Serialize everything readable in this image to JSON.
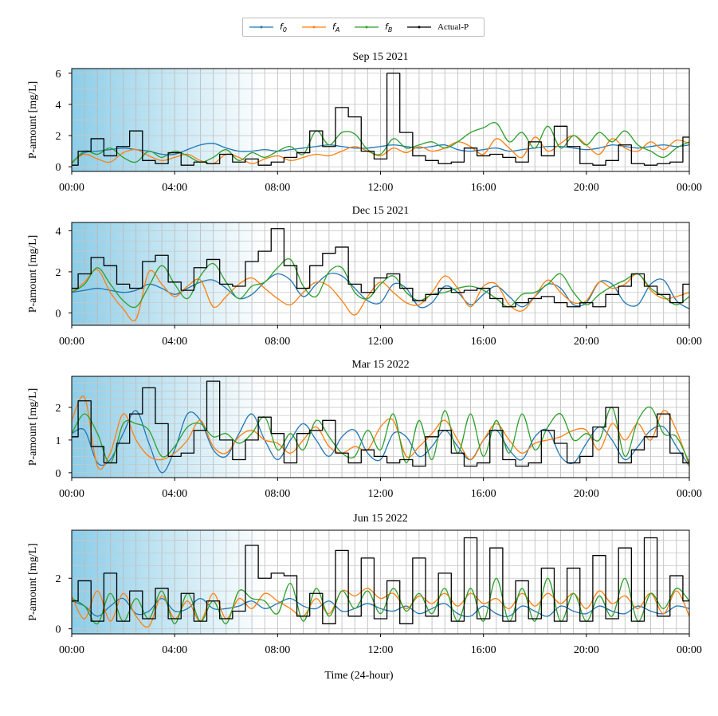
{
  "legend": {
    "items": [
      {
        "label": "f",
        "sub": "0",
        "color": "#1f77b4"
      },
      {
        "label": "f",
        "sub": "A",
        "color": "#ff7f0e"
      },
      {
        "label": "f",
        "sub": "B",
        "color": "#2ca02c"
      },
      {
        "label": "Actual-P",
        "sub": "",
        "color": "#000000"
      }
    ]
  },
  "xlabel": "Time (24-hour)",
  "chart_data": [
    {
      "type": "line",
      "title": "Sep 15 2021",
      "ylabel": "P-amount [mg/L]",
      "ylim": [
        -0.3,
        6.3
      ],
      "yticks": [
        0,
        2,
        4,
        6
      ],
      "xticks": [
        "00:00",
        "04:00",
        "08:00",
        "12:00",
        "16:00",
        "20:00",
        "00:00"
      ],
      "x_hours": [
        0,
        0.5,
        1,
        1.5,
        2,
        2.5,
        3,
        3.5,
        4,
        4.5,
        5,
        5.5,
        6,
        6.5,
        7,
        7.5,
        8,
        8.5,
        9,
        9.5,
        10,
        10.5,
        11,
        11.5,
        12,
        12.5,
        13,
        13.5,
        14,
        14.5,
        15,
        15.5,
        16,
        16.5,
        17,
        17.5,
        18,
        18.5,
        19,
        19.5,
        20,
        20.5,
        21,
        21.5,
        22,
        22.5,
        23,
        23.5,
        24
      ],
      "series": [
        {
          "name": "f0",
          "color": "#1f77b4",
          "values": [
            0.3,
            0.9,
            1.0,
            1.1,
            1.2,
            1.1,
            1.0,
            0.8,
            0.8,
            1.1,
            1.4,
            1.5,
            1.2,
            1.0,
            1.0,
            1.1,
            1.0,
            1.1,
            1.2,
            1.3,
            1.4,
            1.3,
            1.2,
            1.2,
            1.3,
            1.4,
            1.3,
            1.2,
            1.3,
            1.4,
            1.1,
            1.0,
            1.1,
            1.2,
            1.0,
            1.1,
            1.2,
            1.3,
            1.3,
            1.2,
            1.1,
            1.2,
            1.4,
            1.3,
            1.2,
            1.3,
            1.4,
            1.3,
            1.4
          ]
        },
        {
          "name": "fA",
          "color": "#ff7f0e",
          "values": [
            0.3,
            0.8,
            0.5,
            0.3,
            0.9,
            1.1,
            0.7,
            0.4,
            0.6,
            0.8,
            0.4,
            0.2,
            0.8,
            0.6,
            0.2,
            0.5,
            0.7,
            0.4,
            0.6,
            0.8,
            0.7,
            1.0,
            1.3,
            1.0,
            0.7,
            1.2,
            0.9,
            1.3,
            1.0,
            1.2,
            1.6,
            1.3,
            0.8,
            1.8,
            1.2,
            0.6,
            1.9,
            1.0,
            1.5,
            2.0,
            1.4,
            0.8,
            1.8,
            1.2,
            1.0,
            1.6,
            1.1,
            1.7,
            1.5
          ]
        },
        {
          "name": "fB",
          "color": "#2ca02c",
          "values": [
            0.2,
            1.0,
            0.8,
            1.2,
            0.6,
            0.3,
            1.0,
            0.6,
            1.0,
            0.7,
            0.3,
            0.6,
            1.1,
            0.4,
            0.9,
            0.6,
            1.0,
            1.3,
            0.8,
            2.3,
            1.4,
            2.2,
            2.1,
            1.1,
            0.8,
            1.8,
            1.2,
            1.4,
            1.6,
            1.2,
            1.6,
            2.2,
            2.5,
            2.8,
            1.6,
            2.2,
            1.2,
            2.6,
            1.2,
            2.0,
            1.4,
            2.2,
            1.6,
            2.3,
            1.4,
            1.0,
            0.6,
            1.2,
            1.6
          ]
        },
        {
          "name": "Actual-P",
          "color": "#000000",
          "values": [
            0.1,
            1.0,
            1.8,
            0.7,
            1.3,
            2.3,
            0.4,
            0.2,
            0.9,
            0.1,
            0.3,
            0.2,
            0.8,
            0.3,
            0.5,
            0.1,
            0.3,
            0.6,
            0.9,
            2.3,
            1.3,
            3.8,
            3.2,
            1.0,
            0.5,
            6.0,
            2.2,
            0.7,
            0.4,
            0.2,
            0.3,
            1.2,
            0.7,
            0.8,
            0.6,
            0.3,
            1.6,
            0.7,
            2.6,
            1.3,
            0.2,
            0.1,
            0.4,
            1.4,
            0.2,
            0.1,
            0.2,
            0.3,
            1.9
          ]
        }
      ]
    },
    {
      "type": "line",
      "title": "Dec 15 2021",
      "ylabel": "P-amount [mg/L]",
      "ylim": [
        -0.6,
        4.4
      ],
      "yticks": [
        0,
        2,
        4
      ],
      "xticks": [
        "00:00",
        "04:00",
        "08:00",
        "12:00",
        "16:00",
        "20:00",
        "00:00"
      ],
      "x_hours": [
        0,
        0.5,
        1,
        1.5,
        2,
        2.5,
        3,
        3.5,
        4,
        4.5,
        5,
        5.5,
        6,
        6.5,
        7,
        7.5,
        8,
        8.5,
        9,
        9.5,
        10,
        10.5,
        11,
        11.5,
        12,
        12.5,
        13,
        13.5,
        14,
        14.5,
        15,
        15.5,
        16,
        16.5,
        17,
        17.5,
        18,
        18.5,
        19,
        19.5,
        20,
        20.5,
        21,
        21.5,
        22,
        22.5,
        23,
        23.5,
        24
      ],
      "series": [
        {
          "name": "f0",
          "color": "#1f77b4",
          "values": [
            1.0,
            1.1,
            1.2,
            1.1,
            1.0,
            1.1,
            1.4,
            1.2,
            0.9,
            1.2,
            1.5,
            1.6,
            1.2,
            0.7,
            0.9,
            1.5,
            1.9,
            1.6,
            0.8,
            1.4,
            1.9,
            1.8,
            1.2,
            0.6,
            0.5,
            1.4,
            1.2,
            0.3,
            0.5,
            1.3,
            1.0,
            0.4,
            0.9,
            1.3,
            0.8,
            0.3,
            0.8,
            1.4,
            1.2,
            0.4,
            0.5,
            1.5,
            1.4,
            0.5,
            0.4,
            1.4,
            1.6,
            0.6,
            0.2
          ]
        },
        {
          "name": "fA",
          "color": "#ff7f0e",
          "values": [
            1.0,
            1.5,
            2.1,
            1.0,
            0.2,
            -0.3,
            2.0,
            1.4,
            0.8,
            1.3,
            1.6,
            0.3,
            0.8,
            1.4,
            1.7,
            1.2,
            0.7,
            0.4,
            1.0,
            1.5,
            1.3,
            0.6,
            -0.1,
            0.8,
            1.5,
            1.0,
            0.5,
            0.4,
            1.0,
            1.8,
            1.2,
            0.3,
            1.3,
            1.4,
            0.4,
            0.1,
            0.8,
            1.6,
            1.0,
            0.5,
            0.6,
            1.5,
            1.2,
            1.4,
            1.9,
            1.1,
            0.7,
            0.8,
            1.0
          ]
        },
        {
          "name": "fB",
          "color": "#2ca02c",
          "values": [
            1.0,
            1.4,
            2.2,
            1.4,
            0.6,
            0.3,
            1.3,
            2.3,
            1.4,
            0.7,
            1.8,
            2.4,
            1.5,
            0.7,
            1.3,
            1.5,
            2.2,
            2.6,
            1.3,
            0.8,
            2.0,
            2.2,
            1.0,
            0.7,
            1.4,
            1.8,
            1.0,
            0.6,
            0.9,
            1.0,
            1.2,
            1.3,
            1.1,
            0.7,
            0.3,
            0.9,
            1.0,
            1.4,
            1.9,
            1.0,
            0.4,
            0.9,
            1.3,
            1.6,
            1.9,
            1.2,
            0.8,
            0.4,
            0.8
          ]
        },
        {
          "name": "Actual-P",
          "color": "#000000",
          "values": [
            1.2,
            1.9,
            2.7,
            2.3,
            1.4,
            1.2,
            2.5,
            2.8,
            1.5,
            1.1,
            2.2,
            2.6,
            1.4,
            1.3,
            2.5,
            3.0,
            4.1,
            2.3,
            1.2,
            2.3,
            2.9,
            3.2,
            1.4,
            1.0,
            1.7,
            1.9,
            1.2,
            0.6,
            0.9,
            1.2,
            1.0,
            1.1,
            1.2,
            0.7,
            0.3,
            0.5,
            0.7,
            0.8,
            0.5,
            0.3,
            0.5,
            0.3,
            0.9,
            1.3,
            1.9,
            1.3,
            0.9,
            0.5,
            1.4
          ]
        }
      ]
    },
    {
      "type": "line",
      "title": "Mar 15 2022",
      "ylabel": "P-amount [mg/L]",
      "ylim": [
        -0.15,
        2.95
      ],
      "yticks": [
        0,
        1,
        2
      ],
      "xticks": [
        "00:00",
        "04:00",
        "08:00",
        "12:00",
        "16:00",
        "20:00",
        "00:00"
      ],
      "x_hours": [
        0,
        0.5,
        1,
        1.5,
        2,
        2.5,
        3,
        3.5,
        4,
        4.5,
        5,
        5.5,
        6,
        6.5,
        7,
        7.5,
        8,
        8.5,
        9,
        9.5,
        10,
        10.5,
        11,
        11.5,
        12,
        12.5,
        13,
        13.5,
        14,
        14.5,
        15,
        15.5,
        16,
        16.5,
        17,
        17.5,
        18,
        18.5,
        19,
        19.5,
        20,
        20.5,
        21,
        21.5,
        22,
        22.5,
        23,
        23.5,
        24
      ],
      "series": [
        {
          "name": "f0",
          "color": "#1f77b4",
          "values": [
            1.2,
            1.3,
            0.3,
            0.4,
            1.2,
            1.9,
            0.9,
            0.0,
            0.7,
            1.8,
            1.6,
            0.7,
            0.5,
            1.2,
            1.8,
            1.0,
            0.4,
            1.0,
            1.5,
            1.0,
            0.5,
            1.1,
            1.3,
            0.6,
            0.4,
            1.2,
            1.1,
            0.5,
            0.8,
            1.3,
            0.8,
            0.4,
            1.0,
            1.3,
            0.7,
            0.4,
            1.1,
            1.3,
            0.5,
            0.3,
            0.9,
            1.4,
            1.0,
            0.4,
            0.8,
            1.3,
            1.4,
            0.8,
            0.2
          ]
        },
        {
          "name": "fA",
          "color": "#ff7f0e",
          "values": [
            1.6,
            2.3,
            0.2,
            0.6,
            1.8,
            1.0,
            0.5,
            0.4,
            0.6,
            1.0,
            1.6,
            0.8,
            0.6,
            1.1,
            1.3,
            1.0,
            0.9,
            0.6,
            1.0,
            1.4,
            0.8,
            0.6,
            0.8,
            0.7,
            1.4,
            1.6,
            0.5,
            0.8,
            1.2,
            1.6,
            1.0,
            0.4,
            1.0,
            1.5,
            1.0,
            0.6,
            0.9,
            1.0,
            1.1,
            1.3,
            1.3,
            0.7,
            1.5,
            1.0,
            1.5,
            1.0,
            1.9,
            1.3,
            0.2
          ]
        },
        {
          "name": "fB",
          "color": "#2ca02c",
          "values": [
            1.2,
            1.8,
            1.2,
            0.3,
            1.5,
            1.5,
            1.3,
            0.5,
            0.8,
            1.4,
            1.5,
            1.1,
            1.2,
            0.9,
            1.2,
            1.7,
            0.7,
            1.2,
            0.7,
            1.6,
            1.1,
            0.6,
            0.5,
            1.3,
            0.7,
            1.8,
            0.3,
            1.6,
            0.4,
            1.9,
            0.6,
            1.8,
            0.5,
            1.6,
            0.6,
            1.8,
            0.7,
            1.4,
            1.8,
            1.0,
            1.2,
            1.0,
            2.0,
            0.5,
            1.6,
            2.0,
            1.2,
            1.1,
            0.3
          ]
        },
        {
          "name": "Actual-P",
          "color": "#000000",
          "values": [
            1.1,
            2.2,
            0.8,
            0.3,
            0.9,
            1.8,
            2.6,
            1.5,
            0.5,
            0.6,
            1.3,
            2.8,
            1.0,
            0.4,
            1.0,
            1.7,
            1.2,
            0.3,
            1.2,
            1.3,
            1.6,
            0.6,
            0.3,
            0.7,
            0.5,
            0.3,
            0.4,
            0.2,
            1.1,
            1.3,
            0.6,
            0.2,
            0.3,
            1.3,
            0.4,
            0.2,
            0.3,
            1.3,
            0.9,
            0.3,
            0.5,
            1.4,
            2.0,
            0.3,
            0.7,
            1.1,
            1.8,
            0.6,
            0.3
          ]
        }
      ]
    },
    {
      "type": "line",
      "title": "Jun 15 2022",
      "ylabel": "P-amount [mg/L]",
      "ylim": [
        -0.2,
        3.9
      ],
      "yticks": [
        0,
        2
      ],
      "xticks": [
        "00:00",
        "04:00",
        "08:00",
        "12:00",
        "16:00",
        "20:00",
        "00:00"
      ],
      "x_hours": [
        0,
        0.5,
        1,
        1.5,
        2,
        2.5,
        3,
        3.5,
        4,
        4.5,
        5,
        5.5,
        6,
        6.5,
        7,
        7.5,
        8,
        8.5,
        9,
        9.5,
        10,
        10.5,
        11,
        11.5,
        12,
        12.5,
        13,
        13.5,
        14,
        14.5,
        15,
        15.5,
        16,
        16.5,
        17,
        17.5,
        18,
        18.5,
        19,
        19.5,
        20,
        20.5,
        21,
        21.5,
        22,
        22.5,
        23,
        23.5,
        24
      ],
      "series": [
        {
          "name": "f0",
          "color": "#1f77b4",
          "values": [
            1.1,
            0.9,
            0.5,
            0.9,
            1.2,
            0.6,
            0.7,
            1.2,
            0.7,
            0.8,
            1.2,
            0.8,
            0.8,
            0.9,
            1.1,
            0.8,
            1.0,
            1.2,
            0.9,
            0.8,
            1.1,
            0.7,
            0.8,
            1.0,
            0.8,
            0.7,
            0.9,
            0.6,
            0.8,
            1.0,
            0.6,
            0.5,
            0.9,
            0.6,
            0.5,
            0.9,
            0.7,
            0.5,
            0.9,
            0.7,
            0.6,
            0.9,
            0.7,
            0.6,
            0.9,
            0.7,
            0.6,
            0.9,
            0.8
          ]
        },
        {
          "name": "fA",
          "color": "#ff7f0e",
          "values": [
            1.3,
            0.4,
            1.5,
            0.3,
            1.4,
            0.5,
            0.1,
            1.3,
            0.4,
            1.1,
            0.3,
            1.4,
            0.4,
            1.2,
            0.8,
            1.4,
            1.1,
            0.8,
            0.5,
            1.2,
            0.6,
            1.5,
            1.3,
            1.6,
            1.2,
            1.4,
            0.8,
            1.3,
            1.0,
            1.4,
            0.9,
            1.4,
            1.0,
            1.2,
            0.8,
            1.4,
            0.9,
            1.4,
            1.0,
            1.4,
            0.8,
            1.5,
            1.0,
            1.3,
            0.8,
            1.4,
            0.6,
            1.5,
            0.5
          ]
        },
        {
          "name": "fB",
          "color": "#2ca02c",
          "values": [
            1.2,
            0.9,
            0.2,
            1.4,
            0.3,
            1.2,
            0.4,
            1.5,
            0.2,
            1.4,
            0.3,
            1.1,
            0.2,
            1.5,
            1.2,
            1.1,
            0.6,
            1.8,
            0.3,
            1.6,
            0.5,
            1.5,
            0.8,
            1.5,
            0.6,
            1.6,
            0.7,
            1.4,
            0.6,
            1.6,
            0.3,
            1.6,
            0.3,
            2.0,
            0.3,
            1.6,
            0.3,
            2.0,
            0.3,
            1.4,
            0.3,
            1.3,
            0.5,
            2.0,
            0.3,
            1.4,
            0.8,
            1.6,
            1.1
          ]
        },
        {
          "name": "Actual-P",
          "color": "#000000",
          "values": [
            1.1,
            1.9,
            0.3,
            2.2,
            0.3,
            1.5,
            0.4,
            1.6,
            0.4,
            1.4,
            0.3,
            1.1,
            0.4,
            0.7,
            3.3,
            2.0,
            2.2,
            2.1,
            0.5,
            1.4,
            0.2,
            3.1,
            0.5,
            2.8,
            0.4,
            1.9,
            0.2,
            2.8,
            0.5,
            2.2,
            0.3,
            3.6,
            0.4,
            3.2,
            0.3,
            1.9,
            0.4,
            2.4,
            0.3,
            2.4,
            0.3,
            2.9,
            0.4,
            3.2,
            0.3,
            3.6,
            0.5,
            2.1,
            1.1
          ]
        }
      ]
    }
  ]
}
